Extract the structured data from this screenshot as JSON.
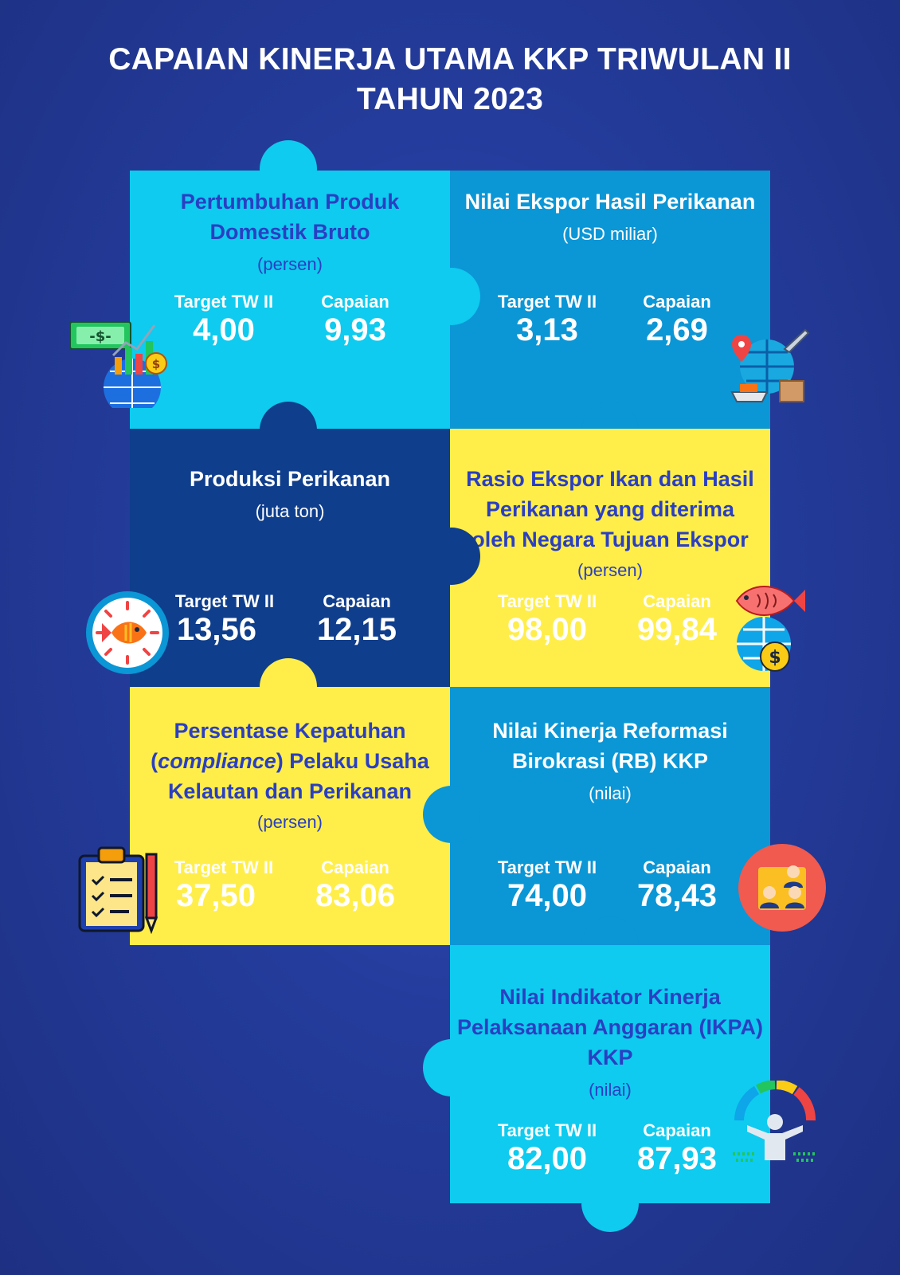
{
  "title": {
    "line1": "CAPAIAN KINERJA UTAMA  KKP TRIWULAN II",
    "line2": "TAHUN 2023"
  },
  "labels": {
    "target": "Target TW II",
    "capaian": "Capaian"
  },
  "colors": {
    "background": "#243c9c",
    "light_cyan": "#0ecbef",
    "mid_blue": "#0b96d6",
    "navy": "#0f3e8c",
    "yellow": "#ffee4a",
    "title_blue": "#2a3fc2"
  },
  "indicators": [
    {
      "title_lines": [
        "Pertumbuhan Produk",
        "Domestik Bruto"
      ],
      "unit": "(persen)",
      "target": "4,00",
      "capaian": "9,93",
      "icon": "gdp-growth-icon"
    },
    {
      "title_lines": [
        "Nilai Ekspor Hasil Perikanan"
      ],
      "unit": "(USD miliar)",
      "target": "3,13",
      "capaian": "2,69",
      "icon": "global-export-icon"
    },
    {
      "title_lines": [
        "Produksi Perikanan"
      ],
      "unit": "(juta ton)",
      "target": "13,56",
      "capaian": "12,15",
      "icon": "fish-icon"
    },
    {
      "title_lines": [
        "Rasio Ekspor Ikan dan Hasil",
        "Perikanan yang diterima",
        "oleh Negara Tujuan Ekspor"
      ],
      "unit": "(persen)",
      "target": "98,00",
      "capaian": "99,84",
      "icon": "fish-export-icon"
    },
    {
      "title_lines": [
        "Persentase Kepatuhan",
        "(",
        "compliance",
        ") Pelaku Usaha",
        "Kelautan dan Perikanan"
      ],
      "unit": "(persen)",
      "target": "37,50",
      "capaian": "83,06",
      "icon": "checklist-icon"
    },
    {
      "title_lines": [
        "Nilai Kinerja Reformasi",
        "Birokrasi (RB) KKP"
      ],
      "unit": "(nilai)",
      "target": "74,00",
      "capaian": "78,43",
      "icon": "team-icon"
    },
    {
      "title_lines": [
        "Nilai Indikator Kinerja",
        "Pelaksanaan Anggaran (IKPA)",
        "KKP"
      ],
      "unit": "(nilai)",
      "target": "82,00",
      "capaian": "87,93",
      "icon": "performance-gauge-icon"
    }
  ]
}
